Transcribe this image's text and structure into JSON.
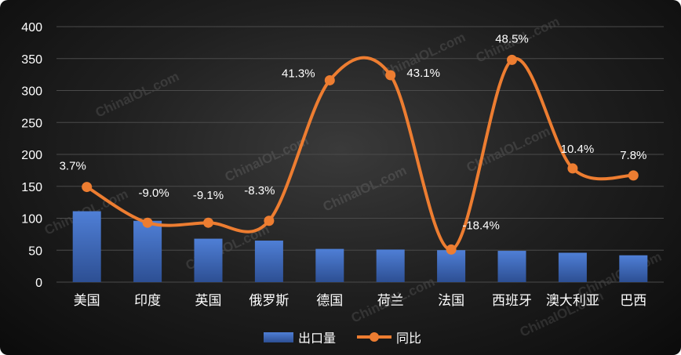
{
  "watermark_text": "ChinaIOL.com",
  "chart_data": {
    "type": "bar",
    "categories": [
      "美国",
      "印度",
      "英国",
      "俄罗斯",
      "德国",
      "荷兰",
      "法国",
      "西班牙",
      "澳大利亚",
      "巴西"
    ],
    "series": [
      {
        "name": "出口量",
        "type": "bar",
        "color": "#4472C4",
        "values": [
          111,
          96,
          68,
          65,
          52,
          51,
          50,
          49,
          46,
          42
        ]
      },
      {
        "name": "同比",
        "type": "line",
        "smooth": true,
        "color": "#ED7D31",
        "values": [
          149,
          93,
          93,
          96,
          316,
          324,
          51,
          348,
          178,
          167
        ],
        "labels": [
          "3.7%",
          "-9.0%",
          "-9.1%",
          "-8.3%",
          "41.3%",
          "43.1%",
          "-18.4%",
          "48.5%",
          "10.4%",
          "7.8%"
        ]
      }
    ],
    "ylim": [
      0,
      400
    ],
    "yticks": [
      0,
      50,
      100,
      150,
      200,
      250,
      300,
      350,
      400
    ],
    "grid": true,
    "legend_position": "bottom"
  }
}
